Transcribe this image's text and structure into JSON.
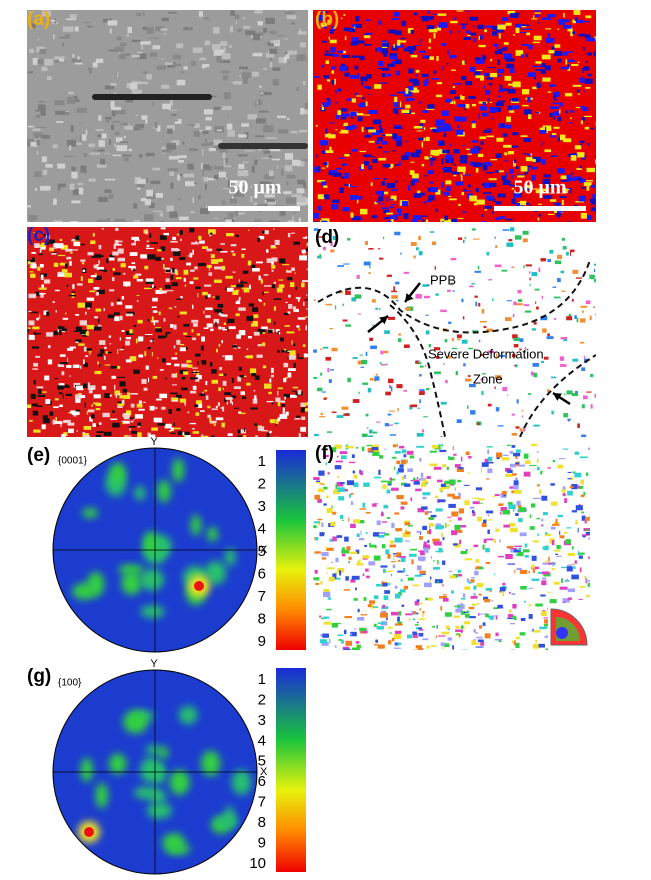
{
  "panels": {
    "a": {
      "label": "(a)",
      "scale_bar": "50 μm"
    },
    "b": {
      "label": "(b)",
      "scale_bar": "50 μm"
    },
    "c": {
      "label": "(c)"
    },
    "d": {
      "label": "(d)",
      "annotations": [
        "PPB",
        "Severe Deformation",
        "Zone"
      ]
    },
    "e": {
      "label": "(e)",
      "plane": "{0001}",
      "axis_y": "Y",
      "axis_x": "X",
      "colorbar": [
        1,
        2,
        3,
        4,
        5,
        6,
        7,
        8,
        9
      ]
    },
    "f": {
      "label": "(f)"
    },
    "g": {
      "label": "(g)",
      "plane": "{100}",
      "axis_y": "Y",
      "axis_x": "X",
      "colorbar": [
        1,
        2,
        3,
        4,
        5,
        6,
        7,
        8,
        9,
        10
      ]
    }
  }
}
